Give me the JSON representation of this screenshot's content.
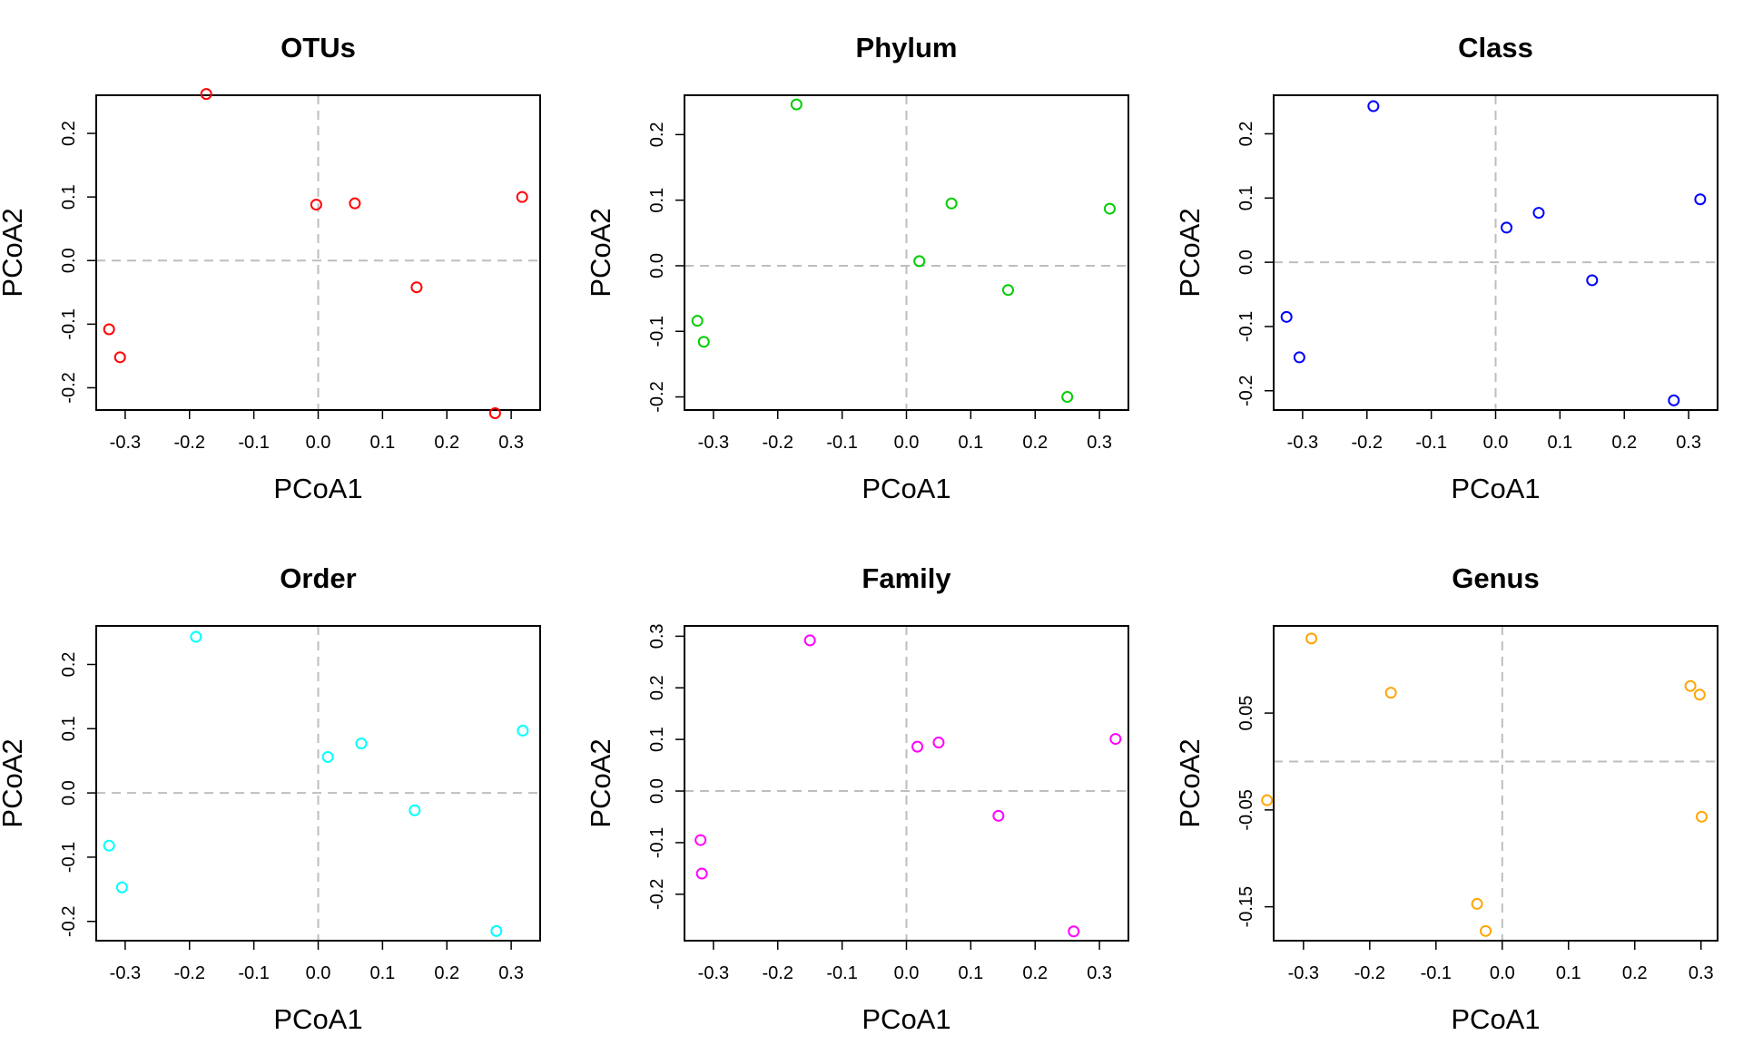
{
  "chart_data": [
    {
      "type": "scatter",
      "title": "OTUs",
      "xlabel": "PCoA1",
      "ylabel": "PCoA2",
      "color": "#ff0000",
      "xlim": [
        -0.345,
        0.345
      ],
      "ylim": [
        -0.235,
        0.26
      ],
      "xticks": [
        -0.3,
        -0.2,
        -0.1,
        0.0,
        0.1,
        0.2,
        0.3
      ],
      "xtick_labels": [
        "-0.3",
        "-0.2",
        "-0.1",
        "0.0",
        "0.1",
        "0.2",
        "0.3"
      ],
      "yticks": [
        -0.2,
        -0.1,
        0.0,
        0.1,
        0.2
      ],
      "ytick_labels": [
        "-0.2",
        "-0.1",
        "0.0",
        "0.1",
        "0.2"
      ],
      "reference_lines": {
        "x": 0,
        "y": 0
      },
      "points": [
        {
          "x": -0.325,
          "y": -0.108
        },
        {
          "x": -0.308,
          "y": -0.152
        },
        {
          "x": -0.174,
          "y": 0.262
        },
        {
          "x": -0.003,
          "y": 0.088
        },
        {
          "x": 0.057,
          "y": 0.09
        },
        {
          "x": 0.153,
          "y": -0.042
        },
        {
          "x": 0.275,
          "y": -0.24
        },
        {
          "x": 0.317,
          "y": 0.1
        }
      ]
    },
    {
      "type": "scatter",
      "title": "Phylum",
      "xlabel": "PCoA1",
      "ylabel": "PCoA2",
      "color": "#00cd00",
      "xlim": [
        -0.345,
        0.345
      ],
      "ylim": [
        -0.22,
        0.26
      ],
      "xticks": [
        -0.3,
        -0.2,
        -0.1,
        0.0,
        0.1,
        0.2,
        0.3
      ],
      "xtick_labels": [
        "-0.3",
        "-0.2",
        "-0.1",
        "0.0",
        "0.1",
        "0.2",
        "0.3"
      ],
      "yticks": [
        -0.2,
        -0.1,
        0.0,
        0.1,
        0.2
      ],
      "ytick_labels": [
        "-0.2",
        "-0.1",
        "0.0",
        "0.1",
        "0.2"
      ],
      "reference_lines": {
        "x": 0,
        "y": 0
      },
      "points": [
        {
          "x": -0.325,
          "y": -0.084
        },
        {
          "x": -0.315,
          "y": -0.116
        },
        {
          "x": -0.171,
          "y": 0.246
        },
        {
          "x": 0.02,
          "y": 0.007
        },
        {
          "x": 0.07,
          "y": 0.095
        },
        {
          "x": 0.158,
          "y": -0.037
        },
        {
          "x": 0.25,
          "y": -0.2
        },
        {
          "x": 0.316,
          "y": 0.087
        }
      ]
    },
    {
      "type": "scatter",
      "title": "Class",
      "xlabel": "PCoA1",
      "ylabel": "PCoA2",
      "color": "#0000ff",
      "xlim": [
        -0.345,
        0.345
      ],
      "ylim": [
        -0.23,
        0.26
      ],
      "xticks": [
        -0.3,
        -0.2,
        -0.1,
        0.0,
        0.1,
        0.2,
        0.3
      ],
      "xtick_labels": [
        "-0.3",
        "-0.2",
        "-0.1",
        "0.0",
        "0.1",
        "0.2",
        "0.3"
      ],
      "yticks": [
        -0.2,
        -0.1,
        0.0,
        0.1,
        0.2
      ],
      "ytick_labels": [
        "-0.2",
        "-0.1",
        "0.0",
        "0.1",
        "0.2"
      ],
      "reference_lines": {
        "x": 0,
        "y": 0
      },
      "points": [
        {
          "x": -0.325,
          "y": -0.085
        },
        {
          "x": -0.305,
          "y": -0.148
        },
        {
          "x": -0.19,
          "y": 0.243
        },
        {
          "x": 0.017,
          "y": 0.054
        },
        {
          "x": 0.067,
          "y": 0.077
        },
        {
          "x": 0.15,
          "y": -0.028
        },
        {
          "x": 0.277,
          "y": -0.215
        },
        {
          "x": 0.318,
          "y": 0.098
        }
      ]
    },
    {
      "type": "scatter",
      "title": "Order",
      "xlabel": "PCoA1",
      "ylabel": "PCoA2",
      "color": "#00ffff",
      "xlim": [
        -0.345,
        0.345
      ],
      "ylim": [
        -0.23,
        0.26
      ],
      "xticks": [
        -0.3,
        -0.2,
        -0.1,
        0.0,
        0.1,
        0.2,
        0.3
      ],
      "xtick_labels": [
        "-0.3",
        "-0.2",
        "-0.1",
        "0.0",
        "0.1",
        "0.2",
        "0.3"
      ],
      "yticks": [
        -0.2,
        -0.1,
        0.0,
        0.1,
        0.2
      ],
      "ytick_labels": [
        "-0.2",
        "-0.1",
        "0.0",
        "0.1",
        "0.2"
      ],
      "reference_lines": {
        "x": 0,
        "y": 0
      },
      "points": [
        {
          "x": -0.325,
          "y": -0.082
        },
        {
          "x": -0.305,
          "y": -0.147
        },
        {
          "x": -0.19,
          "y": 0.243
        },
        {
          "x": 0.015,
          "y": 0.056
        },
        {
          "x": 0.067,
          "y": 0.077
        },
        {
          "x": 0.15,
          "y": -0.027
        },
        {
          "x": 0.277,
          "y": -0.215
        },
        {
          "x": 0.318,
          "y": 0.097
        }
      ]
    },
    {
      "type": "scatter",
      "title": "Family",
      "xlabel": "PCoA1",
      "ylabel": "PCoA2",
      "color": "#ff00ff",
      "xlim": [
        -0.345,
        0.345
      ],
      "ylim": [
        -0.29,
        0.32
      ],
      "xticks": [
        -0.3,
        -0.2,
        -0.1,
        0.0,
        0.1,
        0.2,
        0.3
      ],
      "xtick_labels": [
        "-0.3",
        "-0.2",
        "-0.1",
        "0.0",
        "0.1",
        "0.2",
        "0.3"
      ],
      "yticks": [
        -0.2,
        -0.1,
        0.0,
        0.1,
        0.2,
        0.3
      ],
      "ytick_labels": [
        "-0.2",
        "-0.1",
        "0.0",
        "0.1",
        "0.2",
        "0.3"
      ],
      "reference_lines": {
        "x": 0,
        "y": 0
      },
      "points": [
        {
          "x": -0.32,
          "y": -0.095
        },
        {
          "x": -0.318,
          "y": -0.16
        },
        {
          "x": -0.15,
          "y": 0.292
        },
        {
          "x": 0.017,
          "y": 0.086
        },
        {
          "x": 0.05,
          "y": 0.094
        },
        {
          "x": 0.143,
          "y": -0.048
        },
        {
          "x": 0.26,
          "y": -0.272
        },
        {
          "x": 0.325,
          "y": 0.101
        }
      ]
    },
    {
      "type": "scatter",
      "title": "Genus",
      "xlabel": "PCoA1",
      "ylabel": "PCoA2",
      "color": "#ffa500",
      "xlim": [
        -0.345,
        0.325
      ],
      "ylim": [
        -0.185,
        0.14
      ],
      "xticks": [
        -0.3,
        -0.2,
        -0.1,
        0.0,
        0.1,
        0.2,
        0.3
      ],
      "xtick_labels": [
        "-0.3",
        "-0.2",
        "-0.1",
        "0.0",
        "0.1",
        "0.2",
        "0.3"
      ],
      "yticks": [
        -0.15,
        -0.05,
        0.05
      ],
      "ytick_labels": [
        "-0.15",
        "-0.05",
        "0.05"
      ],
      "reference_lines": {
        "x": 0,
        "y": 0
      },
      "points": [
        {
          "x": -0.355,
          "y": -0.04
        },
        {
          "x": -0.288,
          "y": 0.127
        },
        {
          "x": -0.168,
          "y": 0.071
        },
        {
          "x": -0.038,
          "y": -0.147
        },
        {
          "x": -0.025,
          "y": -0.175
        },
        {
          "x": 0.284,
          "y": 0.078
        },
        {
          "x": 0.298,
          "y": 0.069
        },
        {
          "x": 0.301,
          "y": -0.057
        }
      ]
    }
  ]
}
